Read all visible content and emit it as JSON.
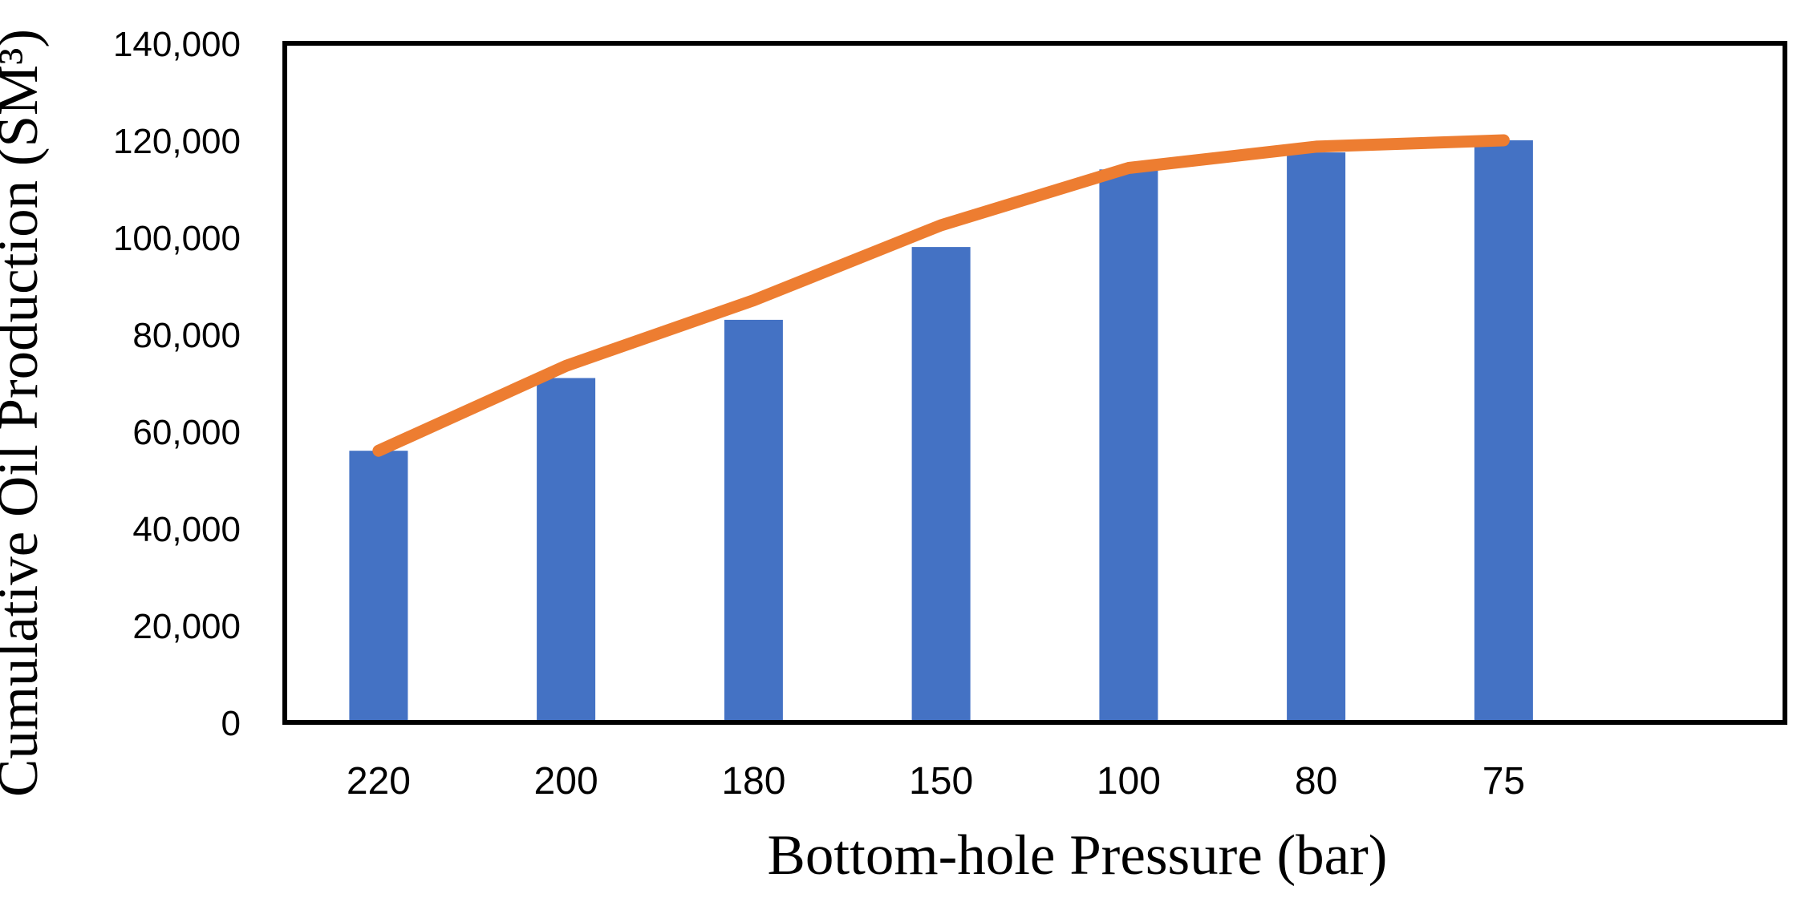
{
  "chart_data": {
    "type": "bar",
    "subtype": "bar-line-combo",
    "title": "",
    "xlabel": "Bottom-hole Pressure (bar)",
    "ylabel": "Cumulative Oil Production (SM³)",
    "categories": [
      "220",
      "200",
      "180",
      "150",
      "100",
      "80",
      "75"
    ],
    "series": [
      {
        "name": "cumulative-oil-production-bars",
        "type": "bar",
        "color": "#4472C4",
        "values": [
          56000,
          71000,
          83000,
          98000,
          114000,
          117500,
          120000
        ]
      },
      {
        "name": "cumulative-oil-production-trend-line",
        "type": "line",
        "color": "#ED7D31",
        "values": [
          56000,
          73500,
          87000,
          102500,
          114300,
          118700,
          120000
        ]
      }
    ],
    "ylim": [
      0,
      140000
    ],
    "y_tick_step": 20000,
    "y_tick_labels": [
      "0",
      "20,000",
      "40,000",
      "60,000",
      "80,000",
      "100,000",
      "120,000",
      "140,000"
    ],
    "x_slots": 8,
    "grid": false,
    "legend": false,
    "frame": true
  },
  "colors": {
    "bar": "#4472C4",
    "line": "#ED7D31",
    "frame": "#000000",
    "background": "#FFFFFF",
    "text": "#000000"
  }
}
